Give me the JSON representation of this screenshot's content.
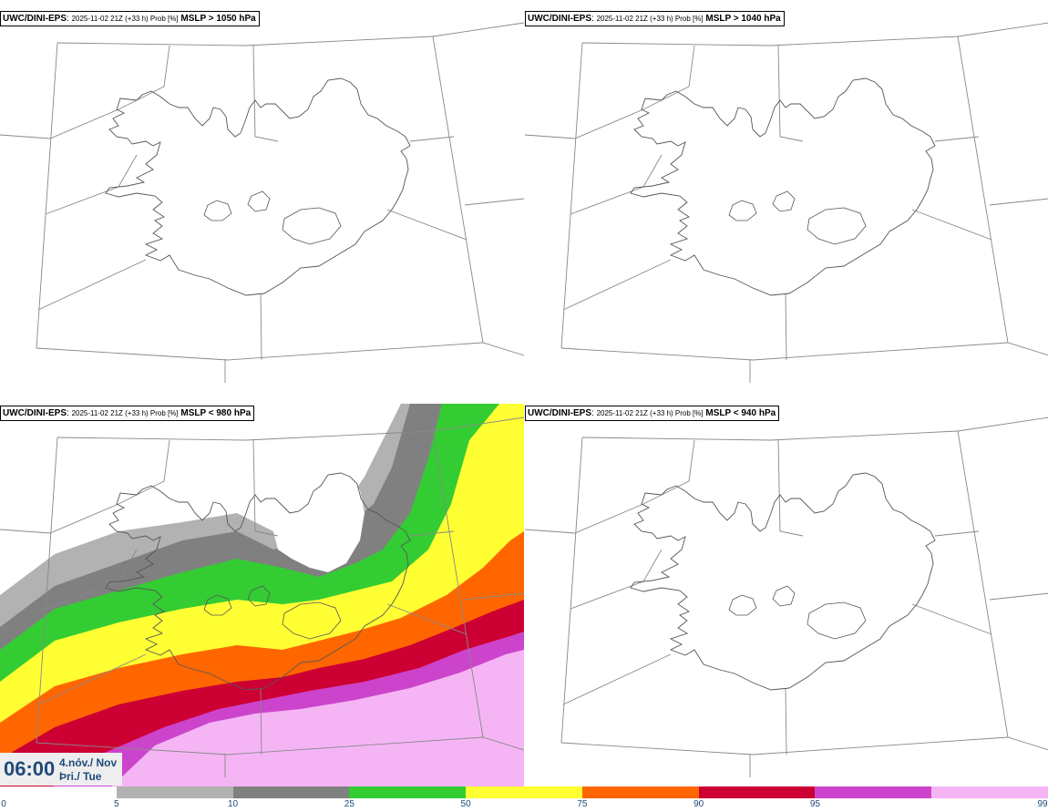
{
  "panels": [
    {
      "model": "UWC/DINI-EPS",
      "run": "2025-11-02 21Z (+33 h) Prob [%]",
      "variable": "MSLP > 1050 hPa"
    },
    {
      "model": "UWC/DINI-EPS",
      "run": "2025-11-02 21Z (+33 h) Prob [%]",
      "variable": "MSLP > 1040 hPa"
    },
    {
      "model": "UWC/DINI-EPS",
      "run": "2025-11-02 21Z (+33 h) Prob [%]",
      "variable": "MSLP < 980 hPa"
    },
    {
      "model": "UWC/DINI-EPS",
      "run": "2025-11-02 21Z (+33 h) Prob [%]",
      "variable": "MSLP < 940 hPa"
    }
  ],
  "valid_time": {
    "hour": "06:00",
    "date": "4.nóv./ Nov",
    "weekday": "Þri./ Tue"
  },
  "legend": {
    "ticks": [
      "0",
      "5",
      "10",
      "25",
      "50",
      "75",
      "90",
      "95",
      "99"
    ],
    "colors": [
      "#ffffff",
      "#b2b2b2",
      "#808080",
      "#33cc33",
      "#ffff33",
      "#ff6600",
      "#cc0033",
      "#cc44cc",
      "#f5b5f5"
    ]
  }
}
